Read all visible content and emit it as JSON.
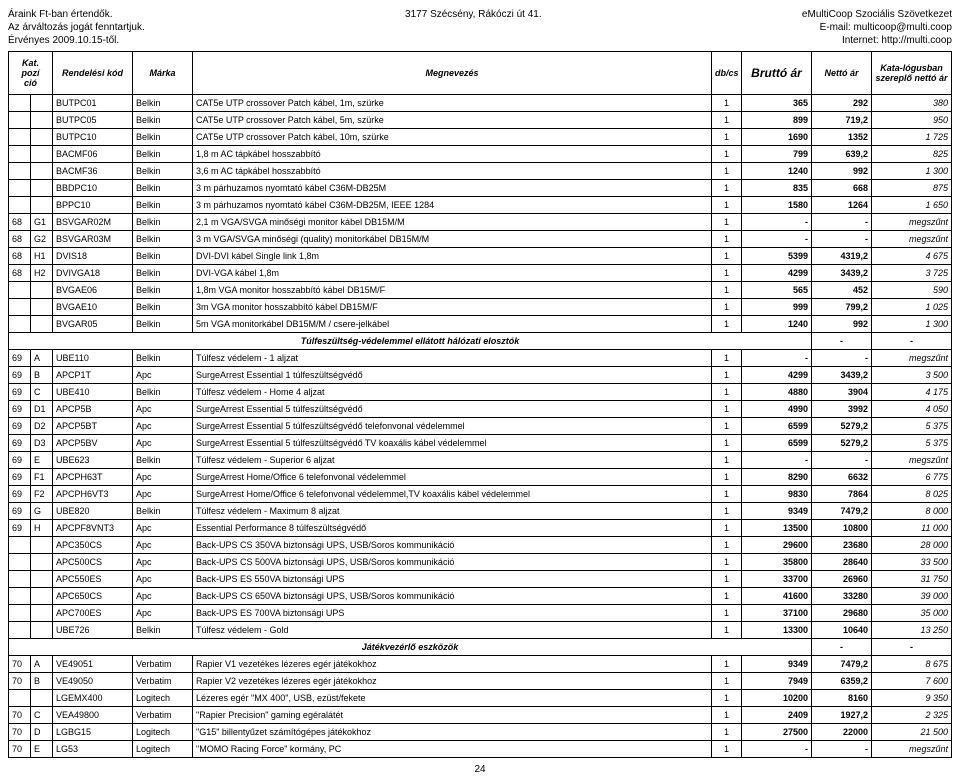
{
  "header": {
    "left1": "Áraink Ft-ban értendők.",
    "left2": "Az árváltozás jogát fenntartjuk.",
    "left3": "Érvényes 2009.10.15-től.",
    "center": "3177 Szécsény, Rákóczi út 41.",
    "right1": "eMultiCoop Szociális Szövetkezet",
    "right2": "E-mail: multicoop@multi.coop",
    "right3": "Internet: http://multi.coop"
  },
  "columns": {
    "kat": "Kat.\npozí\nció",
    "rend": "Rendelési kód",
    "marka": "Márka",
    "megn": "Megnevezés",
    "dbcs": "db/cs",
    "brutto": "Bruttó ár",
    "netto": "Nettó ár",
    "kata": "Kata-lógusban\nszereplő nettó ár"
  },
  "sections": [
    {
      "rows": [
        {
          "kat": "",
          "pozi": "",
          "rend": "BUTPC01",
          "marka": "Belkin",
          "megn": "CAT5e UTP crossover Patch kábel, 1m, szürke",
          "dbcs": "1",
          "brutto": "365",
          "netto": "292",
          "kata": "380"
        },
        {
          "kat": "",
          "pozi": "",
          "rend": "BUTPC05",
          "marka": "Belkin",
          "megn": "CAT5e UTP crossover Patch kábel, 5m, szürke",
          "dbcs": "1",
          "brutto": "899",
          "netto": "719,2",
          "kata": "950"
        },
        {
          "kat": "",
          "pozi": "",
          "rend": "BUTPC10",
          "marka": "Belkin",
          "megn": "CAT5e UTP crossover Patch kábel, 10m, szürke",
          "dbcs": "1",
          "brutto": "1690",
          "netto": "1352",
          "kata": "1 725"
        },
        {
          "kat": "",
          "pozi": "",
          "rend": "BACMF06",
          "marka": "Belkin",
          "megn": "1,8 m AC tápkábel hosszabbító",
          "dbcs": "1",
          "brutto": "799",
          "netto": "639,2",
          "kata": "825"
        },
        {
          "kat": "",
          "pozi": "",
          "rend": "BACMF36",
          "marka": "Belkin",
          "megn": "3,6 m AC tápkábel hosszabbító",
          "dbcs": "1",
          "brutto": "1240",
          "netto": "992",
          "kata": "1 300"
        },
        {
          "kat": "",
          "pozi": "",
          "rend": "BBDPC10",
          "marka": "Belkin",
          "megn": "3 m párhuzamos nyomtató kábel C36M-DB25M",
          "dbcs": "1",
          "brutto": "835",
          "netto": "668",
          "kata": "875"
        },
        {
          "kat": "",
          "pozi": "",
          "rend": "BPPC10",
          "marka": "Belkin",
          "megn": "3 m párhuzamos nyomtató kábel C36M-DB25M, IEEE 1284",
          "dbcs": "1",
          "brutto": "1580",
          "netto": "1264",
          "kata": "1 650"
        },
        {
          "kat": "68",
          "pozi": "G1",
          "rend": "BSVGAR02M",
          "marka": "Belkin",
          "megn": "2,1 m VGA/SVGA minőségi monitor kábel DB15M/M",
          "dbcs": "1",
          "brutto": "-",
          "netto": "-",
          "kata": "megszűnt"
        },
        {
          "kat": "68",
          "pozi": "G2",
          "rend": "BSVGAR03M",
          "marka": "Belkin",
          "megn": "3 m VGA/SVGA minőségi (quality) monitorkábel DB15M/M",
          "dbcs": "1",
          "brutto": "-",
          "netto": "-",
          "kata": "megszűnt"
        },
        {
          "kat": "68",
          "pozi": "H1",
          "rend": "DVIS18",
          "marka": "Belkin",
          "megn": "DVI-DVI kábel Single link 1,8m",
          "dbcs": "1",
          "brutto": "5399",
          "netto": "4319,2",
          "kata": "4 675"
        },
        {
          "kat": "68",
          "pozi": "H2",
          "rend": "DVIVGA18",
          "marka": "Belkin",
          "megn": "DVI-VGA kábel 1,8m",
          "dbcs": "1",
          "brutto": "4299",
          "netto": "3439,2",
          "kata": "3 725"
        },
        {
          "kat": "",
          "pozi": "",
          "rend": "BVGAE06",
          "marka": "Belkin",
          "megn": "1,8m VGA  monitor hosszabbító kábel DB15M/F",
          "dbcs": "1",
          "brutto": "565",
          "netto": "452",
          "kata": "590"
        },
        {
          "kat": "",
          "pozi": "",
          "rend": "BVGAE10",
          "marka": "Belkin",
          "megn": "3m VGA  monitor hosszabbító kábel DB15M/F",
          "dbcs": "1",
          "brutto": "999",
          "netto": "799,2",
          "kata": "1 025"
        },
        {
          "kat": "",
          "pozi": "",
          "rend": "BVGAR05",
          "marka": "Belkin",
          "megn": "5m VGA  monitorkábel DB15M/M / csere-jelkábel",
          "dbcs": "1",
          "brutto": "1240",
          "netto": "992",
          "kata": "1 300"
        }
      ]
    },
    {
      "title": "Túlfeszültség-védelemmel ellátott hálózati elosztók",
      "tail": [
        "-",
        "-"
      ],
      "rows": [
        {
          "kat": "69",
          "pozi": "A",
          "rend": "UBE110",
          "marka": "Belkin",
          "megn": "Túlfesz védelem - 1 aljzat",
          "dbcs": "1",
          "brutto": "-",
          "netto": "-",
          "kata": "megszűnt"
        },
        {
          "kat": "69",
          "pozi": "B",
          "rend": "APCP1T",
          "marka": "Apc",
          "megn": "SurgeArrest Essential 1 túlfeszültségvédő",
          "dbcs": "1",
          "brutto": "4299",
          "netto": "3439,2",
          "kata": "3 500"
        },
        {
          "kat": "69",
          "pozi": "C",
          "rend": "UBE410",
          "marka": "Belkin",
          "megn": "Túlfesz védelem - Home 4 aljzat",
          "dbcs": "1",
          "brutto": "4880",
          "netto": "3904",
          "kata": "4 175"
        },
        {
          "kat": "69",
          "pozi": "D1",
          "rend": "APCP5B",
          "marka": "Apc",
          "megn": "SurgeArrest Essential 5 túlfeszültségvédő",
          "dbcs": "1",
          "brutto": "4990",
          "netto": "3992",
          "kata": "4 050"
        },
        {
          "kat": "69",
          "pozi": "D2",
          "rend": "APCP5BT",
          "marka": "Apc",
          "megn": "SurgeArrest Essential 5 túlfeszültségvédő telefonvonal védelemmel",
          "dbcs": "1",
          "brutto": "6599",
          "netto": "5279,2",
          "kata": "5 375"
        },
        {
          "kat": "69",
          "pozi": "D3",
          "rend": "APCP5BV",
          "marka": "Apc",
          "megn": "SurgeArrest Essential 5 túlfeszültségvédő TV koaxális kábel védelemmel",
          "dbcs": "1",
          "brutto": "6599",
          "netto": "5279,2",
          "kata": "5 375"
        },
        {
          "kat": "69",
          "pozi": "E",
          "rend": "UBE623",
          "marka": "Belkin",
          "megn": "Túlfesz védelem - Superior 6 aljzat",
          "dbcs": "1",
          "brutto": "-",
          "netto": "-",
          "kata": "megszűnt"
        },
        {
          "kat": "69",
          "pozi": "F1",
          "rend": "APCPH63T",
          "marka": "Apc",
          "megn": "SurgeArrest Home/Office 6 telefonvonal védelemmel",
          "dbcs": "1",
          "brutto": "8290",
          "netto": "6632",
          "kata": "6 775"
        },
        {
          "kat": "69",
          "pozi": "F2",
          "rend": "APCPH6VT3",
          "marka": "Apc",
          "megn": "SurgeArrest Home/Office 6 telefonvonal védelemmel,TV koaxális kábel védelemmel",
          "dbcs": "1",
          "brutto": "9830",
          "netto": "7864",
          "kata": "8 025"
        },
        {
          "kat": "69",
          "pozi": "G",
          "rend": "UBE820",
          "marka": "Belkin",
          "megn": "Túlfesz védelem - Maximum 8 aljzat",
          "dbcs": "1",
          "brutto": "9349",
          "netto": "7479,2",
          "kata": "8 000"
        },
        {
          "kat": "69",
          "pozi": "H",
          "rend": "APCPF8VNT3",
          "marka": "Apc",
          "megn": "Essential Performance 8 túlfeszültségvédő",
          "dbcs": "1",
          "brutto": "13500",
          "netto": "10800",
          "kata": "11 000"
        },
        {
          "kat": "",
          "pozi": "",
          "rend": "APC350CS",
          "marka": "Apc",
          "megn": "Back-UPS CS 350VA biztonsági UPS, USB/Soros kommunikáció",
          "dbcs": "1",
          "brutto": "29600",
          "netto": "23680",
          "kata": "28 000"
        },
        {
          "kat": "",
          "pozi": "",
          "rend": "APC500CS",
          "marka": "Apc",
          "megn": "Back-UPS CS 500VA biztonsági UPS, USB/Soros kommunikáció",
          "dbcs": "1",
          "brutto": "35800",
          "netto": "28640",
          "kata": "33 500"
        },
        {
          "kat": "",
          "pozi": "",
          "rend": "APC550ES",
          "marka": "Apc",
          "megn": "Back-UPS ES 550VA biztonsági UPS",
          "dbcs": "1",
          "brutto": "33700",
          "netto": "26960",
          "kata": "31 750"
        },
        {
          "kat": "",
          "pozi": "",
          "rend": "APC650CS",
          "marka": "Apc",
          "megn": "Back-UPS CS 650VA biztonsági UPS, USB/Soros kommunikáció",
          "dbcs": "1",
          "brutto": "41600",
          "netto": "33280",
          "kata": "39 000"
        },
        {
          "kat": "",
          "pozi": "",
          "rend": "APC700ES",
          "marka": "Apc",
          "megn": "Back-UPS ES 700VA biztonsági UPS",
          "dbcs": "1",
          "brutto": "37100",
          "netto": "29680",
          "kata": "35 000"
        },
        {
          "kat": "",
          "pozi": "",
          "rend": "UBE726",
          "marka": "Belkin",
          "megn": "Túlfesz védelem - Gold",
          "dbcs": "1",
          "brutto": "13300",
          "netto": "10640",
          "kata": "13 250"
        }
      ]
    },
    {
      "title": "Játékvezérlő eszközök",
      "tail": [
        "-",
        "-"
      ],
      "rows": [
        {
          "kat": "70",
          "pozi": "A",
          "rend": "VE49051",
          "marka": "Verbatim",
          "megn": "Rapier V1 vezetékes lézeres egér játékokhoz",
          "dbcs": "1",
          "brutto": "9349",
          "netto": "7479,2",
          "kata": "8 675"
        },
        {
          "kat": "70",
          "pozi": "B",
          "rend": "VE49050",
          "marka": "Verbatim",
          "megn": "Rapier V2 vezetékes lézeres egér játékokhoz",
          "dbcs": "1",
          "brutto": "7949",
          "netto": "6359,2",
          "kata": "7 600"
        },
        {
          "kat": "",
          "pozi": "",
          "rend": "LGEMX400",
          "marka": "Logitech",
          "megn": "Lézeres egér \"MX 400\", USB, ezüst/fekete",
          "dbcs": "1",
          "brutto": "10200",
          "netto": "8160",
          "kata": "9 350"
        },
        {
          "kat": "70",
          "pozi": "C",
          "rend": "VEA49800",
          "marka": "Verbatim",
          "megn": "\"Rapier Precision\" gaming egéralátét",
          "dbcs": "1",
          "brutto": "2409",
          "netto": "1927,2",
          "kata": "2 325"
        },
        {
          "kat": "70",
          "pozi": "D",
          "rend": "LGBG15",
          "marka": "Logitech",
          "megn": "\"G15\" billentyűzet számítógépes játékokhoz",
          "dbcs": "1",
          "brutto": "27500",
          "netto": "22000",
          "kata": "21 500"
        },
        {
          "kat": "70",
          "pozi": "E",
          "rend": "LG53",
          "marka": "Logitech",
          "megn": "\"MOMO Racing Force\" kormány, PC",
          "dbcs": "1",
          "brutto": "-",
          "netto": "-",
          "kata": "megszűnt"
        }
      ]
    }
  ],
  "page": "24"
}
